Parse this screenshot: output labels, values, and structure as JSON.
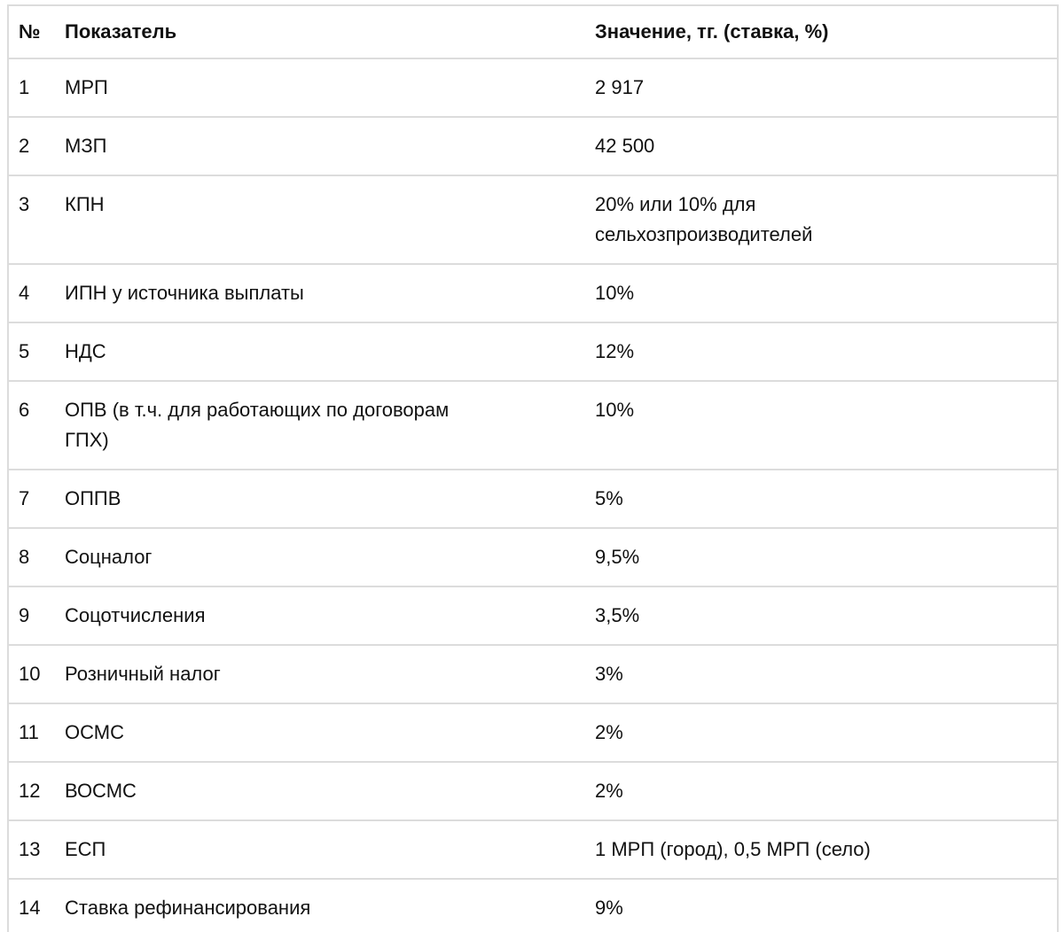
{
  "colors": {
    "border": "#dcdcdc",
    "text": "#111111",
    "background": "#ffffff"
  },
  "table": {
    "columns": [
      {
        "key": "num",
        "label": "№"
      },
      {
        "key": "indicator",
        "label": "Показатель"
      },
      {
        "key": "value",
        "label": "Значение, тг. (ставка, %)"
      }
    ],
    "rows": [
      {
        "num": "1",
        "indicator": "МРП",
        "value": "2 917"
      },
      {
        "num": "2",
        "indicator": "МЗП",
        "value": "42 500"
      },
      {
        "num": "3",
        "indicator": "КПН",
        "value": "20% или 10% для\nсельхозпроизводителей"
      },
      {
        "num": "4",
        "indicator": "ИПН у источника выплаты",
        "value": "10%"
      },
      {
        "num": "5",
        "indicator": "НДС",
        "value": "12%"
      },
      {
        "num": "6",
        "indicator": "ОПВ (в т.ч. для работающих по договорам\nГПХ)",
        "value": "10%"
      },
      {
        "num": "7",
        "indicator": "ОППВ",
        "value": "5%"
      },
      {
        "num": "8",
        "indicator": "Соцналог",
        "value": "9,5%"
      },
      {
        "num": "9",
        "indicator": "Соцотчисления",
        "value": "3,5%"
      },
      {
        "num": "10",
        "indicator": "Розничный налог",
        "value": "3%"
      },
      {
        "num": "11",
        "indicator": "ОСМС",
        "value": "2%"
      },
      {
        "num": "12",
        "indicator": "ВОСМС",
        "value": "2%"
      },
      {
        "num": "13",
        "indicator": "ЕСП",
        "value": "1 МРП (город), 0,5 МРП (село)"
      },
      {
        "num": "14",
        "indicator": "Ставка рефинансирования",
        "value": "9%"
      }
    ]
  }
}
